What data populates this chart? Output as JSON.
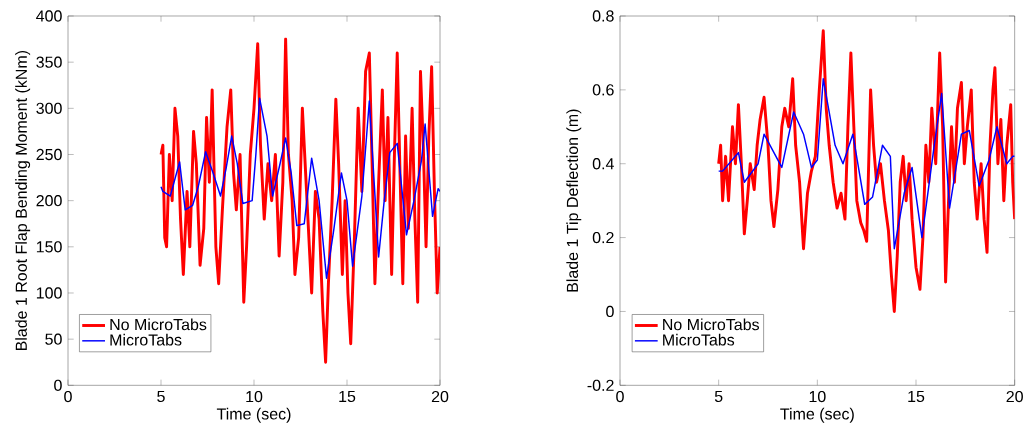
{
  "chart_data": [
    {
      "type": "line",
      "xlabel": "Time (sec)",
      "ylabel": "Blade 1 Root Flap Bending Moment (kNm)",
      "xlim": [
        0,
        20
      ],
      "ylim": [
        0,
        400
      ],
      "xticks": [
        0,
        5,
        10,
        15,
        20
      ],
      "yticks": [
        0,
        50,
        100,
        150,
        200,
        250,
        300,
        350,
        400
      ],
      "legend": "bottom left",
      "series": [
        {
          "name": "No MicroTabs",
          "color": "#ff0000",
          "x": [
            5.0,
            5.1,
            5.2,
            5.3,
            5.45,
            5.6,
            5.75,
            5.9,
            6.05,
            6.2,
            6.4,
            6.55,
            6.75,
            6.9,
            7.1,
            7.3,
            7.45,
            7.6,
            7.75,
            7.95,
            8.1,
            8.3,
            8.55,
            8.75,
            8.9,
            9.05,
            9.25,
            9.45,
            9.6,
            9.8,
            10.0,
            10.2,
            10.35,
            10.55,
            10.75,
            10.95,
            11.15,
            11.35,
            11.55,
            11.7,
            11.85,
            12.05,
            12.2,
            12.4,
            12.6,
            12.75,
            12.9,
            13.1,
            13.3,
            13.5,
            13.7,
            13.85,
            14.0,
            14.2,
            14.4,
            14.55,
            14.75,
            14.9,
            15.05,
            15.2,
            15.4,
            15.6,
            15.8,
            16.0,
            16.2,
            16.35,
            16.5,
            16.7,
            16.9,
            17.05,
            17.2,
            17.4,
            17.55,
            17.7,
            17.85,
            18.0,
            18.15,
            18.3,
            18.5,
            18.65,
            18.8,
            18.95,
            19.1,
            19.25,
            19.4,
            19.55,
            19.7,
            19.85,
            20.0
          ],
          "values": [
            250,
            260,
            160,
            150,
            250,
            200,
            300,
            270,
            180,
            120,
            210,
            150,
            275,
            240,
            130,
            170,
            290,
            220,
            320,
            150,
            110,
            190,
            280,
            320,
            230,
            190,
            250,
            90,
            150,
            250,
            300,
            370,
            260,
            180,
            240,
            200,
            250,
            140,
            220,
            375,
            250,
            200,
            120,
            160,
            300,
            240,
            180,
            100,
            210,
            180,
            80,
            25,
            110,
            200,
            310,
            240,
            120,
            200,
            100,
            45,
            160,
            300,
            210,
            340,
            360,
            240,
            110,
            220,
            320,
            200,
            290,
            120,
            250,
            360,
            230,
            110,
            270,
            170,
            300,
            180,
            90,
            340,
            260,
            150,
            270,
            345,
            210,
            100,
            150
          ]
        },
        {
          "name": "MicroTabs",
          "color": "#0000ff",
          "x": [
            5.0,
            5.1,
            5.5,
            6.0,
            6.3,
            6.7,
            7.0,
            7.4,
            7.8,
            8.2,
            8.5,
            8.8,
            9.1,
            9.4,
            9.9,
            10.1,
            10.3,
            10.7,
            11.0,
            11.4,
            11.7,
            12.0,
            12.3,
            12.7,
            13.1,
            13.5,
            13.9,
            14.3,
            14.7,
            15.0,
            15.3,
            15.8,
            16.2,
            16.7,
            17.0,
            17.3,
            17.7,
            18.2,
            18.6,
            19.0,
            19.2,
            19.6,
            19.9,
            20.0
          ],
          "values": [
            215,
            210,
            205,
            242,
            190,
            195,
            215,
            253,
            230,
            205,
            235,
            270,
            240,
            197,
            200,
            250,
            311,
            270,
            205,
            240,
            268,
            230,
            173,
            175,
            246,
            200,
            116,
            170,
            230,
            200,
            129,
            205,
            308,
            139,
            200,
            252,
            262,
            163,
            200,
            243,
            283,
            183,
            213,
            210
          ]
        }
      ]
    },
    {
      "type": "line",
      "xlabel": "Time (sec)",
      "ylabel": "Blade 1 Tip Deflection (m)",
      "xlim": [
        0,
        20
      ],
      "ylim": [
        -0.2,
        0.8
      ],
      "xticks": [
        0,
        5,
        10,
        15,
        20
      ],
      "yticks": [
        -0.2,
        0,
        0.2,
        0.4,
        0.6,
        0.8
      ],
      "legend": "bottom left",
      "series": [
        {
          "name": "No MicroTabs",
          "color": "#ff0000",
          "x": [
            5.0,
            5.1,
            5.2,
            5.35,
            5.5,
            5.7,
            5.85,
            6.0,
            6.15,
            6.3,
            6.45,
            6.6,
            6.8,
            6.95,
            7.1,
            7.3,
            7.5,
            7.65,
            7.8,
            8.0,
            8.2,
            8.35,
            8.55,
            8.75,
            8.9,
            9.1,
            9.3,
            9.5,
            9.7,
            9.9,
            10.1,
            10.3,
            10.45,
            10.6,
            10.8,
            11.0,
            11.2,
            11.4,
            11.55,
            11.7,
            11.85,
            12.0,
            12.2,
            12.35,
            12.5,
            12.7,
            12.85,
            13.0,
            13.2,
            13.4,
            13.6,
            13.75,
            13.9,
            14.05,
            14.2,
            14.35,
            14.5,
            14.65,
            14.8,
            15.0,
            15.2,
            15.35,
            15.5,
            15.65,
            15.8,
            16.0,
            16.2,
            16.35,
            16.5,
            16.65,
            16.8,
            16.95,
            17.1,
            17.3,
            17.45,
            17.6,
            17.8,
            17.95,
            18.1,
            18.3,
            18.45,
            18.6,
            18.75,
            18.9,
            19.0,
            19.15,
            19.3,
            19.45,
            19.6,
            19.8,
            19.9,
            20.0
          ],
          "values": [
            0.4,
            0.45,
            0.3,
            0.42,
            0.3,
            0.5,
            0.4,
            0.56,
            0.4,
            0.21,
            0.3,
            0.4,
            0.33,
            0.45,
            0.52,
            0.58,
            0.45,
            0.3,
            0.23,
            0.33,
            0.5,
            0.55,
            0.5,
            0.63,
            0.45,
            0.35,
            0.17,
            0.32,
            0.38,
            0.42,
            0.6,
            0.76,
            0.55,
            0.45,
            0.35,
            0.28,
            0.32,
            0.25,
            0.5,
            0.7,
            0.5,
            0.3,
            0.24,
            0.22,
            0.19,
            0.6,
            0.45,
            0.35,
            0.4,
            0.3,
            0.22,
            0.1,
            0.0,
            0.15,
            0.35,
            0.42,
            0.3,
            0.4,
            0.25,
            0.12,
            0.06,
            0.2,
            0.45,
            0.35,
            0.55,
            0.4,
            0.7,
            0.5,
            0.08,
            0.3,
            0.5,
            0.35,
            0.55,
            0.62,
            0.4,
            0.5,
            0.6,
            0.35,
            0.25,
            0.4,
            0.25,
            0.16,
            0.45,
            0.6,
            0.66,
            0.4,
            0.52,
            0.3,
            0.45,
            0.56,
            0.35,
            0.25
          ]
        },
        {
          "name": "MicroTabs",
          "color": "#0000ff",
          "x": [
            5.0,
            5.2,
            6.0,
            6.3,
            7.0,
            7.3,
            8.2,
            8.8,
            9.3,
            9.7,
            10.0,
            10.3,
            10.9,
            11.3,
            11.8,
            12.4,
            12.8,
            13.3,
            13.7,
            13.9,
            14.4,
            14.8,
            15.3,
            15.9,
            16.3,
            16.7,
            17.3,
            17.7,
            18.2,
            18.7,
            19.1,
            19.6,
            19.9,
            20.0
          ],
          "values": [
            0.38,
            0.38,
            0.43,
            0.35,
            0.4,
            0.48,
            0.39,
            0.54,
            0.48,
            0.39,
            0.41,
            0.63,
            0.45,
            0.4,
            0.48,
            0.29,
            0.31,
            0.45,
            0.42,
            0.17,
            0.32,
            0.39,
            0.2,
            0.44,
            0.59,
            0.28,
            0.48,
            0.49,
            0.34,
            0.41,
            0.5,
            0.4,
            0.42,
            0.42
          ]
        }
      ]
    }
  ]
}
